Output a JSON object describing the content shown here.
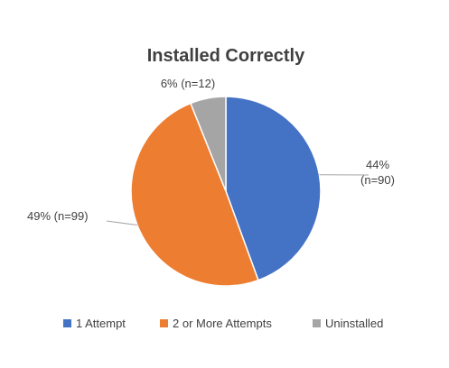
{
  "chart_data": {
    "type": "pie",
    "title": "Installed Correctly",
    "categories": [
      "1 Attempt",
      "2 or More Attempts",
      "Uninstalled"
    ],
    "values": [
      44,
      49,
      6
    ],
    "counts": [
      90,
      99,
      12
    ],
    "colors": [
      "#4472C4",
      "#ED7D31",
      "#A5A5A5"
    ],
    "data_labels": [
      [
        "44%",
        "(n=90)"
      ],
      [
        "49% (n=99)"
      ],
      [
        "6% (n=12)"
      ]
    ],
    "legend_position": "bottom",
    "start_angle_deg": 0,
    "direction": "clockwise"
  }
}
